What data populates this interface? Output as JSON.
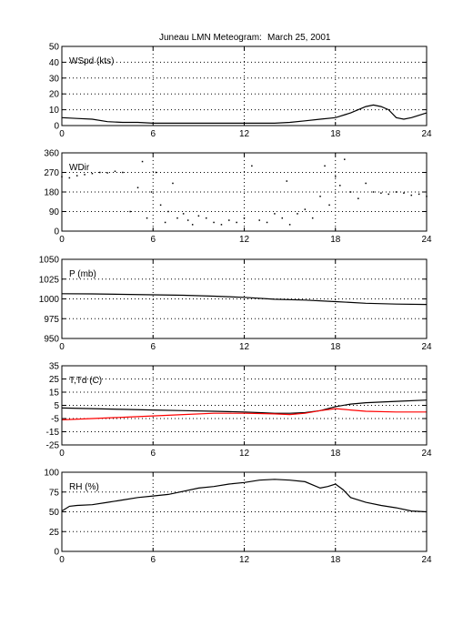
{
  "title": {
    "station": "Juneau LMN Meteogram:",
    "date": "March 25, 2001"
  },
  "colors": {
    "axes": "#000000",
    "grid": "#000000",
    "primary_series": "#000000",
    "dewpoint_series": "#ff0000",
    "background": "#ffffff"
  },
  "chart_data": [
    {
      "type": "line",
      "label": "WSpd (kts)",
      "xlim": [
        0,
        24
      ],
      "ylim": [
        0,
        50
      ],
      "xticks": [
        0,
        6,
        12,
        18,
        24
      ],
      "yticks": [
        0,
        10,
        20,
        30,
        40,
        50
      ],
      "grid": true,
      "series": [
        {
          "color": "#000000",
          "points": [
            [
              0,
              5
            ],
            [
              1,
              4.5
            ],
            [
              2,
              4
            ],
            [
              3,
              2.5
            ],
            [
              4,
              2
            ],
            [
              5,
              2
            ],
            [
              6,
              1.5
            ],
            [
              7,
              1.5
            ],
            [
              8,
              1.5
            ],
            [
              9,
              1.5
            ],
            [
              10,
              1.5
            ],
            [
              11,
              1.5
            ],
            [
              12,
              1.5
            ],
            [
              13,
              1.5
            ],
            [
              14,
              1.5
            ],
            [
              15,
              2
            ],
            [
              16,
              3
            ],
            [
              17,
              4
            ],
            [
              18,
              5
            ],
            [
              19,
              8
            ],
            [
              20,
              12
            ],
            [
              20.5,
              13
            ],
            [
              21,
              12
            ],
            [
              21.5,
              10
            ],
            [
              22,
              5
            ],
            [
              22.5,
              4
            ],
            [
              23,
              5
            ],
            [
              24,
              8
            ]
          ]
        }
      ]
    },
    {
      "type": "scatter",
      "label": "WDir",
      "xlim": [
        0,
        24
      ],
      "ylim": [
        0,
        360
      ],
      "xticks": [
        0,
        6,
        12,
        18,
        24
      ],
      "yticks": [
        0,
        90,
        180,
        270,
        360
      ],
      "grid": true,
      "series": [
        {
          "color": "#000000",
          "points": [
            [
              0,
              250
            ],
            [
              0.5,
              245
            ],
            [
              1,
              255
            ],
            [
              1.5,
              260
            ],
            [
              2,
              265
            ],
            [
              2.5,
              270
            ],
            [
              3,
              268
            ],
            [
              3.5,
              275
            ],
            [
              4,
              270
            ],
            [
              4.5,
              90
            ],
            [
              5,
              200
            ],
            [
              5.3,
              320
            ],
            [
              5.6,
              60
            ],
            [
              5.9,
              180
            ],
            [
              6.2,
              270
            ],
            [
              6.5,
              120
            ],
            [
              6.8,
              40
            ],
            [
              7,
              90
            ],
            [
              7.3,
              220
            ],
            [
              7.6,
              60
            ],
            [
              8,
              80
            ],
            [
              8.3,
              50
            ],
            [
              8.6,
              30
            ],
            [
              9,
              70
            ],
            [
              9.5,
              60
            ],
            [
              10,
              40
            ],
            [
              10.5,
              30
            ],
            [
              11,
              50
            ],
            [
              11.5,
              40
            ],
            [
              12,
              60
            ],
            [
              12.5,
              300
            ],
            [
              13,
              50
            ],
            [
              13.5,
              40
            ],
            [
              14,
              80
            ],
            [
              14.5,
              60
            ],
            [
              14.8,
              230
            ],
            [
              15,
              30
            ],
            [
              15.5,
              80
            ],
            [
              16,
              100
            ],
            [
              16.5,
              60
            ],
            [
              17,
              160
            ],
            [
              17.3,
              300
            ],
            [
              17.6,
              120
            ],
            [
              18,
              250
            ],
            [
              18.3,
              210
            ],
            [
              18.6,
              330
            ],
            [
              19,
              180
            ],
            [
              19.5,
              150
            ],
            [
              20,
              220
            ],
            [
              20.5,
              180
            ],
            [
              21,
              175
            ],
            [
              21.5,
              170
            ],
            [
              22,
              180
            ],
            [
              22.5,
              175
            ],
            [
              23,
              165
            ],
            [
              23.5,
              170
            ],
            [
              24,
              160
            ]
          ]
        }
      ]
    },
    {
      "type": "line",
      "label": "P (mb)",
      "xlim": [
        0,
        24
      ],
      "ylim": [
        950,
        1050
      ],
      "xticks": [
        0,
        6,
        12,
        18,
        24
      ],
      "yticks": [
        950,
        975,
        1000,
        1025,
        1050
      ],
      "grid": true,
      "series": [
        {
          "color": "#000000",
          "points": [
            [
              0,
              1006.5
            ],
            [
              2,
              1006.3
            ],
            [
              4,
              1005.8
            ],
            [
              6,
              1005.2
            ],
            [
              8,
              1004.6
            ],
            [
              10,
              1003.5
            ],
            [
              12,
              1002
            ],
            [
              14,
              999.5
            ],
            [
              16,
              998.5
            ],
            [
              18,
              996.5
            ],
            [
              20,
              994.5
            ],
            [
              22,
              993.5
            ],
            [
              24,
              993
            ]
          ]
        }
      ]
    },
    {
      "type": "line",
      "label": "T,Td (C)",
      "xlim": [
        0,
        24
      ],
      "ylim": [
        -25,
        35
      ],
      "xticks": [
        0,
        6,
        12,
        18,
        24
      ],
      "yticks": [
        -25,
        -15,
        -5,
        5,
        15,
        25,
        35
      ],
      "grid": true,
      "series": [
        {
          "color": "#000000",
          "points": [
            [
              0,
              3
            ],
            [
              2,
              2.5
            ],
            [
              4,
              2
            ],
            [
              6,
              1.5
            ],
            [
              8,
              1
            ],
            [
              10,
              0.5
            ],
            [
              12,
              0
            ],
            [
              13,
              -0.5
            ],
            [
              14,
              -1
            ],
            [
              15,
              -1
            ],
            [
              16,
              -0.5
            ],
            [
              17,
              1
            ],
            [
              18,
              4
            ],
            [
              19,
              6
            ],
            [
              20,
              7
            ],
            [
              22,
              8
            ],
            [
              24,
              9
            ]
          ]
        },
        {
          "color": "#ff0000",
          "points": [
            [
              0,
              -6
            ],
            [
              2,
              -5
            ],
            [
              4,
              -4
            ],
            [
              6,
              -3
            ],
            [
              8,
              -2
            ],
            [
              10,
              -1
            ],
            [
              12,
              -1
            ],
            [
              14,
              -1.5
            ],
            [
              15,
              -2
            ],
            [
              16,
              -1
            ],
            [
              17,
              1
            ],
            [
              18,
              2.5
            ],
            [
              19,
              1.5
            ],
            [
              20,
              0.5
            ],
            [
              22,
              0
            ],
            [
              24,
              0
            ]
          ]
        }
      ]
    },
    {
      "type": "line",
      "label": "RH (%)",
      "xlim": [
        0,
        24
      ],
      "ylim": [
        0,
        100
      ],
      "xticks": [
        0,
        6,
        12,
        18,
        24
      ],
      "yticks": [
        0,
        25,
        50,
        75,
        100
      ],
      "grid": true,
      "series": [
        {
          "color": "#000000",
          "points": [
            [
              0,
              51
            ],
            [
              0.5,
              57
            ],
            [
              1,
              58
            ],
            [
              2,
              59
            ],
            [
              3,
              62
            ],
            [
              4,
              65
            ],
            [
              5,
              68
            ],
            [
              6,
              70
            ],
            [
              7,
              72
            ],
            [
              8,
              76
            ],
            [
              9,
              80
            ],
            [
              10,
              82
            ],
            [
              11,
              85
            ],
            [
              12,
              87
            ],
            [
              13,
              90
            ],
            [
              14,
              91
            ],
            [
              15,
              90
            ],
            [
              16,
              88
            ],
            [
              17,
              80
            ],
            [
              17.5,
              82
            ],
            [
              18,
              85
            ],
            [
              18.5,
              78
            ],
            [
              19,
              68
            ],
            [
              20,
              62
            ],
            [
              21,
              58
            ],
            [
              22,
              55
            ],
            [
              23,
              51
            ],
            [
              24,
              50
            ]
          ]
        }
      ]
    }
  ]
}
